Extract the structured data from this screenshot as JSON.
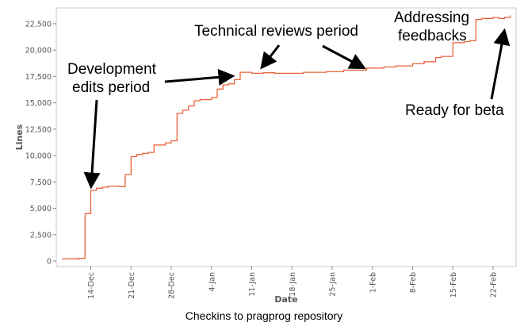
{
  "chart_data": {
    "type": "line",
    "title": "",
    "caption": "Checkins to pragprog repository",
    "xlabel": "Date",
    "ylabel": "Lines",
    "ylim": [
      0,
      24000
    ],
    "xlim": [
      "2015-12-08",
      "2016-02-26"
    ],
    "grid": false,
    "line_color": "#e8643c",
    "y_ticks": [
      0,
      2500,
      5000,
      7500,
      10000,
      12500,
      15000,
      17500,
      20000,
      22500
    ],
    "y_tick_labels": [
      "0",
      "2,500",
      "5,000",
      "7,500",
      "10,000",
      "12,500",
      "15,000",
      "17,500",
      "20,000",
      "22,500"
    ],
    "x_ticks": [
      "2015-12-14",
      "2015-12-21",
      "2015-12-28",
      "2016-01-04",
      "2016-01-11",
      "2016-01-18",
      "2016-01-25",
      "2016-02-01",
      "2016-02-08",
      "2016-02-15",
      "2016-02-22"
    ],
    "x_tick_labels": [
      "14-Dec",
      "21-Dec",
      "28-Dec",
      "4-Jan",
      "11-Jan",
      "18-Jan",
      "25-Jan",
      "1-Feb",
      "8-Feb",
      "15-Feb",
      "22-Feb"
    ],
    "series": [
      {
        "x": [
          "2015-12-09",
          "2015-12-12",
          "2015-12-13",
          "2015-12-13",
          "2015-12-14",
          "2015-12-15",
          "2015-12-16",
          "2015-12-17",
          "2015-12-19",
          "2015-12-20",
          "2015-12-20",
          "2015-12-21",
          "2015-12-21",
          "2015-12-22",
          "2015-12-23",
          "2015-12-24",
          "2015-12-25",
          "2015-12-27",
          "2015-12-28",
          "2015-12-29",
          "2015-12-29",
          "2015-12-30",
          "2015-12-31",
          "2016-01-01",
          "2016-01-02",
          "2016-01-03",
          "2016-01-04",
          "2016-01-05",
          "2016-01-06",
          "2016-01-07",
          "2016-01-08",
          "2016-01-09",
          "2016-01-10",
          "2016-01-11",
          "2016-01-12",
          "2016-01-13",
          "2016-01-15",
          "2016-01-20",
          "2016-01-24",
          "2016-01-27",
          "2016-01-31",
          "2016-02-03",
          "2016-02-05",
          "2016-02-08",
          "2016-02-10",
          "2016-02-12",
          "2016-02-13",
          "2016-02-15",
          "2016-02-17",
          "2016-02-18",
          "2016-02-19",
          "2016-02-20",
          "2016-02-22",
          "2016-02-23",
          "2016-02-24",
          "2016-02-25"
        ],
        "y": [
          200,
          250,
          250,
          4500,
          6700,
          6900,
          7000,
          7100,
          7050,
          7200,
          8200,
          9400,
          9900,
          10100,
          10200,
          10300,
          11000,
          11200,
          11400,
          12500,
          14000,
          14300,
          14700,
          15200,
          15300,
          15300,
          15500,
          16300,
          16700,
          16800,
          17200,
          17900,
          17900,
          17800,
          17800,
          17850,
          17800,
          17900,
          17950,
          18100,
          18300,
          18400,
          18500,
          18700,
          18900,
          19300,
          19400,
          20700,
          20800,
          20900,
          22900,
          23000,
          23100,
          23000,
          23100,
          23300
        ]
      }
    ],
    "annotations": [
      {
        "id": "dev",
        "lines": [
          "Development",
          "edits period"
        ]
      },
      {
        "id": "tech",
        "lines": [
          "Technical reviews period"
        ]
      },
      {
        "id": "addr",
        "lines": [
          "Addressing",
          "feedbacks"
        ]
      },
      {
        "id": "beta",
        "lines": [
          "Ready for beta"
        ]
      }
    ]
  }
}
